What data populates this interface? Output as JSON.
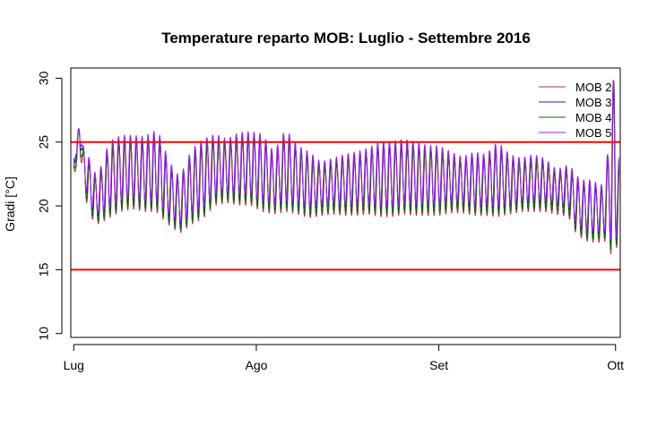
{
  "chart_data": {
    "type": "line",
    "title": "Temperature reparto MOB: Luglio - Settembre 2016",
    "xlabel": "",
    "ylabel": "Gradi [°C]",
    "ylim": [
      9.7,
      30.8
    ],
    "yticks": [
      10,
      15,
      20,
      25,
      30
    ],
    "x_unit": "day since 1 Jul 2016",
    "xlim": [
      -0.5,
      92.8
    ],
    "xticks": [
      {
        "label": "Lug",
        "x": 0
      },
      {
        "label": "Ago",
        "x": 31
      },
      {
        "label": "Set",
        "x": 62
      },
      {
        "label": "Ott",
        "x": 92
      }
    ],
    "reference_lines": [
      {
        "y": 25,
        "color": "#ff0000"
      },
      {
        "y": 15,
        "color": "#ff0000"
      }
    ],
    "legend_position": "top-right",
    "envelope": {
      "x": [
        0,
        0.5,
        1,
        1.5,
        2,
        3,
        4,
        6,
        8,
        10,
        12,
        14,
        15,
        16,
        18,
        20,
        22,
        24,
        26,
        28,
        30,
        32,
        34,
        36,
        38,
        40,
        42,
        44,
        46,
        48,
        50,
        52,
        54,
        56,
        58,
        60,
        62,
        64,
        66,
        68,
        70,
        72,
        74,
        76,
        78,
        80,
        82,
        84,
        85,
        86,
        87,
        88,
        89,
        90,
        90.8,
        91.3,
        91.8,
        92.2,
        92.6
      ],
      "high": [
        24.9,
        24.0,
        28.3,
        24.5,
        24.4,
        23.0,
        22.0,
        24.8,
        25.3,
        25.3,
        25.2,
        25.7,
        25.0,
        23.4,
        22.0,
        24.2,
        25.0,
        25.4,
        25.0,
        25.5,
        25.6,
        25.4,
        24.0,
        25.8,
        24.5,
        24.0,
        23.2,
        23.5,
        23.8,
        24.0,
        24.3,
        24.8,
        24.8,
        25.0,
        24.8,
        24.5,
        24.5,
        24.0,
        23.6,
        24.0,
        23.8,
        24.8,
        23.8,
        23.5,
        23.8,
        23.5,
        22.6,
        23.0,
        22.5,
        21.8,
        21.8,
        21.8,
        21.5,
        21.4,
        24.5,
        28.0,
        30.6,
        24.5,
        23.5
      ],
      "low": [
        23.2,
        23.0,
        25.0,
        22.5,
        21.0,
        19.5,
        19.0,
        19.5,
        20.0,
        20.2,
        20.0,
        20.0,
        19.5,
        19.0,
        18.3,
        19.0,
        19.5,
        20.5,
        20.7,
        20.5,
        20.5,
        20.0,
        19.8,
        20.0,
        19.8,
        19.5,
        19.7,
        19.8,
        19.7,
        19.7,
        19.8,
        19.6,
        19.6,
        19.8,
        19.7,
        19.7,
        19.7,
        19.9,
        19.9,
        19.7,
        19.7,
        19.6,
        19.8,
        20.0,
        20.0,
        20.0,
        19.8,
        19.6,
        18.5,
        18.0,
        17.7,
        17.6,
        17.6,
        17.6,
        18.0,
        16.3,
        16.9,
        17.2,
        17.0
      ]
    },
    "series": [
      {
        "name": "MOB 2",
        "color": "#b52f3f",
        "offset": -0.45,
        "phase": 0.08
      },
      {
        "name": "MOB 3",
        "color": "#2a1eb0",
        "offset": 0.2,
        "phase": 0.02
      },
      {
        "name": "MOB 4",
        "color": "#0a6410",
        "offset": -0.2,
        "phase": 0.05
      },
      {
        "name": "MOB 5",
        "color": "#a020f0",
        "offset": 0.4,
        "phase": 0.0
      }
    ]
  }
}
